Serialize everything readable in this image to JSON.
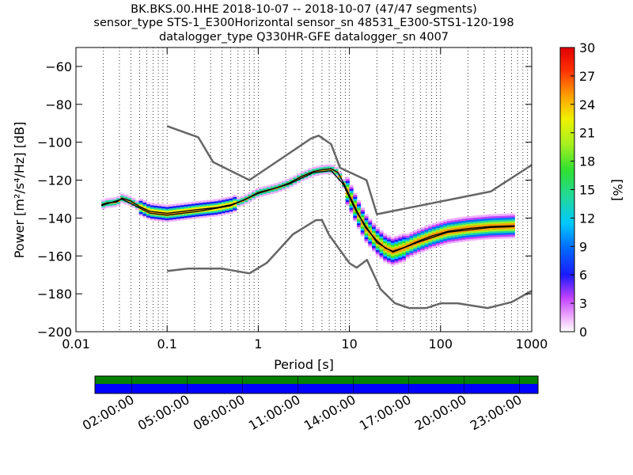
{
  "chart_data": {
    "type": "heatmap",
    "title_lines": [
      "BK.BKS.00.HHE   2018-10-07 -- 2018-10-07  (47/47 segments)",
      "sensor_type STS-1_E300Horizontal sensor_sn 48531_E300-STS1-120-198",
      "datalogger_type Q330HR-GFE datalogger_sn 4007"
    ],
    "xlabel": "Period [s]",
    "ylabel": "Power [m²/s⁴/Hz] [dB]",
    "x_scale": "log",
    "xlim": [
      0.01,
      1000
    ],
    "ylim": [
      -200,
      -50
    ],
    "x_ticks": [
      {
        "value": 0.01,
        "label": "0.01"
      },
      {
        "value": 0.1,
        "label": "0.1"
      },
      {
        "value": 1,
        "label": "1"
      },
      {
        "value": 10,
        "label": "10"
      },
      {
        "value": 100,
        "label": "100"
      },
      {
        "value": 1000,
        "label": "1000"
      }
    ],
    "y_ticks": [
      {
        "value": -60,
        "label": "−60"
      },
      {
        "value": -80,
        "label": "−80"
      },
      {
        "value": -100,
        "label": "−100"
      },
      {
        "value": -120,
        "label": "−120"
      },
      {
        "value": -140,
        "label": "−140"
      },
      {
        "value": -160,
        "label": "−160"
      },
      {
        "value": -180,
        "label": "−180"
      },
      {
        "value": -200,
        "label": "−200"
      }
    ],
    "grid": "vertical dotted lines at log minor ticks",
    "series": [
      {
        "name": "NHNM",
        "color": "#666666",
        "points": [
          [
            0.1,
            -91.5
          ],
          [
            0.22,
            -97.4
          ],
          [
            0.32,
            -110.5
          ],
          [
            0.8,
            -120
          ],
          [
            3.8,
            -98
          ],
          [
            4.6,
            -96.5
          ],
          [
            6.3,
            -101
          ],
          [
            7.9,
            -113.5
          ],
          [
            15.4,
            -120
          ],
          [
            20,
            -138
          ],
          [
            354.8,
            -126
          ],
          [
            1000,
            -112
          ]
        ]
      },
      {
        "name": "NLNM",
        "color": "#666666",
        "points": [
          [
            0.1,
            -168
          ],
          [
            0.17,
            -166.7
          ],
          [
            0.4,
            -166.7
          ],
          [
            0.8,
            -169.2
          ],
          [
            1.24,
            -163.7
          ],
          [
            2.4,
            -148.6
          ],
          [
            4.3,
            -141.1
          ],
          [
            5,
            -141.1
          ],
          [
            6,
            -149
          ],
          [
            10,
            -163.8
          ],
          [
            12,
            -166.2
          ],
          [
            15.6,
            -162.1
          ],
          [
            21.9,
            -177.5
          ],
          [
            31.6,
            -185
          ],
          [
            45,
            -187.5
          ],
          [
            70,
            -187.5
          ],
          [
            101,
            -185
          ],
          [
            154,
            -185
          ],
          [
            328,
            -187.5
          ],
          [
            600,
            -184.4
          ],
          [
            1000,
            -178.5
          ]
        ]
      },
      {
        "name": "median",
        "color": "#000000",
        "points": [
          [
            0.019,
            -133
          ],
          [
            0.022,
            -132
          ],
          [
            0.028,
            -131.5
          ],
          [
            0.032,
            -129.5
          ],
          [
            0.04,
            -131
          ],
          [
            0.05,
            -134
          ],
          [
            0.065,
            -136.5
          ],
          [
            0.1,
            -137.5
          ],
          [
            0.15,
            -136.5
          ],
          [
            0.22,
            -135.5
          ],
          [
            0.35,
            -134.5
          ],
          [
            0.5,
            -133
          ],
          [
            0.7,
            -130.5
          ],
          [
            1,
            -126.5
          ],
          [
            1.6,
            -124
          ],
          [
            2.2,
            -121.5
          ],
          [
            3,
            -118
          ],
          [
            4,
            -115.5
          ],
          [
            5,
            -114.5
          ],
          [
            6.3,
            -114
          ],
          [
            7.5,
            -116
          ],
          [
            8.5,
            -121
          ],
          [
            10,
            -128
          ],
          [
            12,
            -136
          ],
          [
            15,
            -145
          ],
          [
            20,
            -152
          ],
          [
            25,
            -156
          ],
          [
            30,
            -157.5
          ],
          [
            40,
            -155.5
          ],
          [
            55,
            -152.5
          ],
          [
            80,
            -149.5
          ],
          [
            120,
            -147
          ],
          [
            200,
            -145.5
          ],
          [
            350,
            -144.5
          ],
          [
            650,
            -144
          ]
        ]
      },
      {
        "name": "mode",
        "color": "#000000",
        "points": [
          [
            0.019,
            -133.5
          ],
          [
            0.032,
            -130
          ],
          [
            0.065,
            -137.5
          ],
          [
            0.1,
            -138.5
          ],
          [
            0.22,
            -136.5
          ],
          [
            0.5,
            -133.5
          ],
          [
            1,
            -127
          ],
          [
            2.2,
            -122
          ],
          [
            4,
            -116
          ],
          [
            6.3,
            -115
          ],
          [
            8.5,
            -122
          ],
          [
            12,
            -137
          ],
          [
            20,
            -153
          ],
          [
            30,
            -158
          ],
          [
            55,
            -153
          ],
          [
            120,
            -147.5
          ],
          [
            350,
            -145
          ],
          [
            650,
            -144.5
          ]
        ]
      }
    ],
    "colorbar": {
      "label": "[%]",
      "range": [
        0,
        30
      ],
      "ticks": [
        "0",
        "3",
        "6",
        "9",
        "12",
        "15",
        "18",
        "21",
        "24",
        "27",
        "30"
      ]
    },
    "timeline": {
      "labels": [
        "02:00:00",
        "05:00:00",
        "08:00:00",
        "11:00:00",
        "14:00:00",
        "17:00:00",
        "20:00:00",
        "23:00:00"
      ],
      "top_color": "#008000",
      "bottom_color": "#0000ff"
    }
  }
}
